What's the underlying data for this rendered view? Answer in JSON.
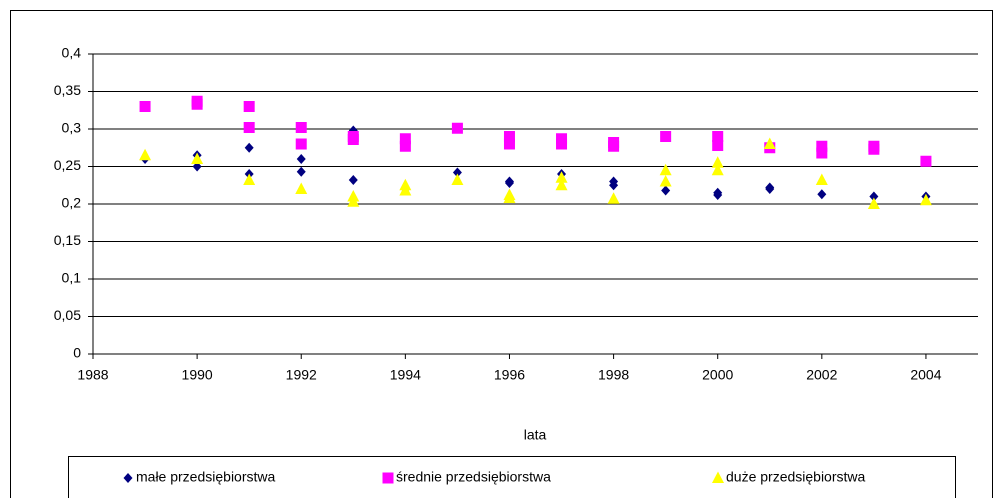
{
  "chart_data": {
    "type": "scatter",
    "x_label": "lata",
    "xlim": [
      1988,
      2005
    ],
    "xticks": [
      1988,
      1990,
      1992,
      1994,
      1996,
      1998,
      2000,
      2002,
      2004
    ],
    "ylim": [
      0,
      0.4
    ],
    "yticks": [
      0,
      {
        "value": 0.05,
        "label": "0,05"
      },
      {
        "value": 0.1,
        "label": "0,1"
      },
      {
        "value": 0.15,
        "label": "0,15"
      },
      {
        "value": 0.2,
        "label": "0,2"
      },
      {
        "value": 0.25,
        "label": "0,25"
      },
      {
        "value": 0.3,
        "label": "0,3"
      },
      {
        "value": 0.35,
        "label": "0,35"
      },
      {
        "value": 0.4,
        "label": "0,4"
      }
    ],
    "grid": true,
    "legend": "bottom",
    "series": [
      {
        "name": "małe przedsiębiorstwa",
        "color": "#000080",
        "marker": "diamond",
        "x": [
          1989,
          1990,
          1990,
          1991,
          1991,
          1992,
          1992,
          1993,
          1993,
          1994,
          1995,
          1996,
          1996,
          1997,
          1998,
          1998,
          1999,
          2000,
          2000,
          2001,
          2001,
          2002,
          2003,
          2004
        ],
        "values": [
          0.26,
          0.265,
          0.25,
          0.275,
          0.24,
          0.26,
          0.243,
          0.298,
          0.232,
          0.22,
          0.242,
          0.23,
          0.228,
          0.24,
          0.23,
          0.225,
          0.218,
          0.215,
          0.212,
          0.222,
          0.22,
          0.213,
          0.21,
          0.21
        ]
      },
      {
        "name": "średnie przedsiębiorstwa",
        "color": "#ff00ff",
        "marker": "square",
        "x": [
          1989,
          1990,
          1990,
          1991,
          1991,
          1992,
          1992,
          1993,
          1993,
          1994,
          1994,
          1995,
          1996,
          1996,
          1997,
          1997,
          1998,
          1998,
          1999,
          2000,
          2000,
          2001,
          2002,
          2002,
          2003,
          2003,
          2004
        ],
        "values": [
          0.33,
          0.337,
          0.333,
          0.33,
          0.302,
          0.302,
          0.28,
          0.29,
          0.286,
          0.287,
          0.277,
          0.301,
          0.29,
          0.28,
          0.287,
          0.28,
          0.282,
          0.277,
          0.29,
          0.29,
          0.278,
          0.275,
          0.277,
          0.268,
          0.277,
          0.273,
          0.257
        ]
      },
      {
        "name": "duże przedsiębiorstwa",
        "color": "#ffff00",
        "marker": "triangle",
        "x": [
          1989,
          1990,
          1991,
          1992,
          1993,
          1993,
          1994,
          1994,
          1995,
          1996,
          1996,
          1997,
          1997,
          1998,
          1999,
          1999,
          2000,
          2000,
          2001,
          2002,
          2003,
          2004
        ],
        "values": [
          0.265,
          0.26,
          0.232,
          0.22,
          0.21,
          0.203,
          0.225,
          0.218,
          0.232,
          0.212,
          0.208,
          0.235,
          0.225,
          0.207,
          0.245,
          0.23,
          0.255,
          0.245,
          0.28,
          0.232,
          0.2,
          0.205
        ]
      }
    ]
  }
}
